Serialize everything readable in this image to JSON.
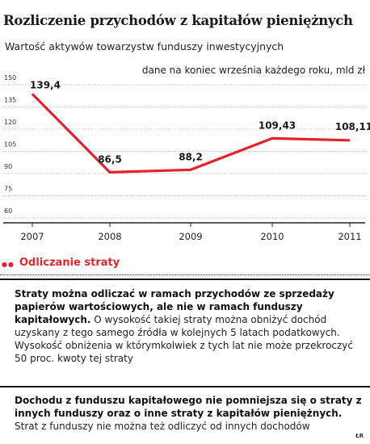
{
  "header": {
    "title": "Rozliczenie przychodów z kapitałów pieniężnych",
    "subtitle": "Wartość aktywów towarzystw funduszy inwestycyjnych",
    "unit_note": "dane na koniec września każdego roku, mld zł"
  },
  "chart_data": {
    "type": "line",
    "x": [
      "2007",
      "2008",
      "2009",
      "2010",
      "2011"
    ],
    "series": [
      {
        "values": [
          139.4,
          86.5,
          88.2,
          109.43,
          108.11
        ]
      }
    ],
    "data_labels": [
      "139,4",
      "86,5",
      "88,2",
      "109,43",
      "108,11"
    ],
    "ylim": [
      60,
      150
    ],
    "yticks": [
      "150",
      "135",
      "120",
      "105",
      "90",
      "75",
      "60"
    ],
    "ytick_values": [
      150,
      135,
      120,
      105,
      90,
      75,
      60
    ],
    "grid": "horizontal dotted",
    "line_color": "#e3242b"
  },
  "section": {
    "title": "Odliczanie straty"
  },
  "paragraphs": {
    "p1_bold": "Straty można odliczać w ramach przychodów ze sprzedaży papierów wartościowych, ale nie w ramach funduszy kapitałowych.",
    "p1_rest": " O wysokość takiej straty można obniżyć dochód uzyskany z tego samego źródła w kolejnych 5 latach podatkowych. Wysokość obniżenia w którymkolwiek z tych lat nie może przekroczyć 50 proc. kwoty tej straty",
    "p2_bold": "Dochodu z funduszu kapitałowego nie pomniejsza się o straty z innych funduszy oraz o inne straty z kapitałów pieniężnych.",
    "p2_rest": " Strat z funduszy nie można też odliczyć od innych dochodów"
  },
  "credit": "ŁR"
}
